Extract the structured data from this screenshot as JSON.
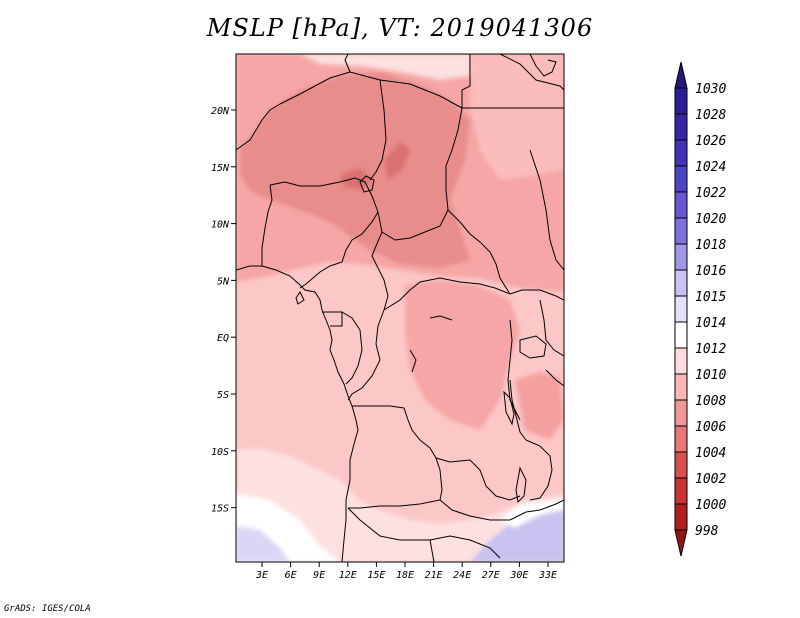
{
  "title": "MSLP [hPa], VT: 2019041306",
  "footer": "GrADS: IGES/COLA",
  "map": {
    "lat_labels": [
      "20N",
      "15N",
      "10N",
      "5N",
      "EQ",
      "5S",
      "10S",
      "15S"
    ],
    "lon_labels": [
      "3E",
      "6E",
      "9E",
      "12E",
      "15E",
      "18E",
      "21E",
      "24E",
      "27E",
      "30E",
      "33E"
    ]
  },
  "colorbar": {
    "labels": [
      "1030",
      "1028",
      "1026",
      "1024",
      "1022",
      "1020",
      "1018",
      "1016",
      "1015",
      "1014",
      "1012",
      "1010",
      "1008",
      "1006",
      "1004",
      "1002",
      "1000",
      "998"
    ],
    "colors": [
      "#241878",
      "#2c1e96",
      "#3528a8",
      "#4133ba",
      "#4e44c6",
      "#6559d2",
      "#7d73dc",
      "#a098e6",
      "#c8c2f0",
      "#e4e0f8",
      "#ffffff",
      "#fcdcdc",
      "#f8b8b8",
      "#f09898",
      "#e87878",
      "#d85050",
      "#c83434",
      "#b01e1e",
      "#961414"
    ]
  }
}
